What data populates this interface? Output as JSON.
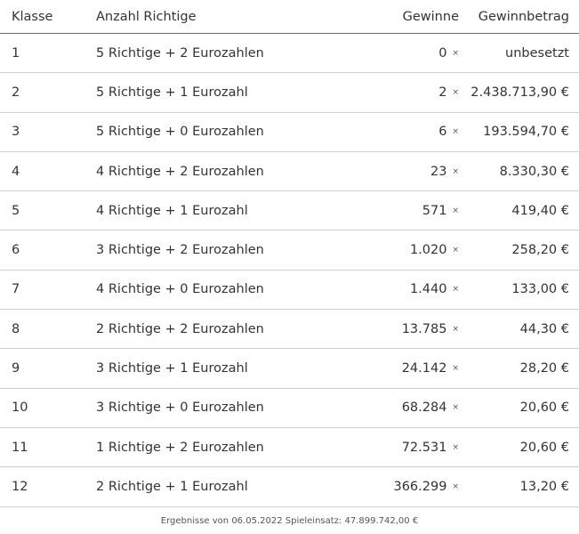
{
  "headers": {
    "klasse": "Klasse",
    "richtige": "Anzahl Richtige",
    "gewinne": "Gewinne",
    "betrag": "Gewinnbetrag"
  },
  "times_symbol": "×",
  "rows": [
    {
      "klasse": "1",
      "richtige": "5 Richtige + 2 Eurozahlen",
      "gewinne": "0",
      "betrag": "unbesetzt"
    },
    {
      "klasse": "2",
      "richtige": "5 Richtige + 1 Eurozahl",
      "gewinne": "2",
      "betrag": "2.438.713,90 €"
    },
    {
      "klasse": "3",
      "richtige": "5 Richtige + 0 Eurozahlen",
      "gewinne": "6",
      "betrag": "193.594,70 €"
    },
    {
      "klasse": "4",
      "richtige": "4 Richtige + 2 Eurozahlen",
      "gewinne": "23",
      "betrag": "8.330,30 €"
    },
    {
      "klasse": "5",
      "richtige": "4 Richtige + 1 Eurozahl",
      "gewinne": "571",
      "betrag": "419,40 €"
    },
    {
      "klasse": "6",
      "richtige": "3 Richtige + 2 Eurozahlen",
      "gewinne": "1.020",
      "betrag": "258,20 €"
    },
    {
      "klasse": "7",
      "richtige": "4 Richtige + 0 Eurozahlen",
      "gewinne": "1.440",
      "betrag": "133,00 €"
    },
    {
      "klasse": "8",
      "richtige": "2 Richtige + 2 Eurozahlen",
      "gewinne": "13.785",
      "betrag": "44,30 €"
    },
    {
      "klasse": "9",
      "richtige": "3 Richtige + 1 Eurozahl",
      "gewinne": "24.142",
      "betrag": "28,20 €"
    },
    {
      "klasse": "10",
      "richtige": "3 Richtige + 0 Eurozahlen",
      "gewinne": "68.284",
      "betrag": "20,60 €"
    },
    {
      "klasse": "11",
      "richtige": "1 Richtige + 2 Eurozahlen",
      "gewinne": "72.531",
      "betrag": "20,60 €"
    },
    {
      "klasse": "12",
      "richtige": "2 Richtige + 1 Eurozahl",
      "gewinne": "366.299",
      "betrag": "13,20 €"
    }
  ],
  "footer": "Ergebnisse von 06.05.2022 Spieleinsatz: 47.899.742,00 €"
}
